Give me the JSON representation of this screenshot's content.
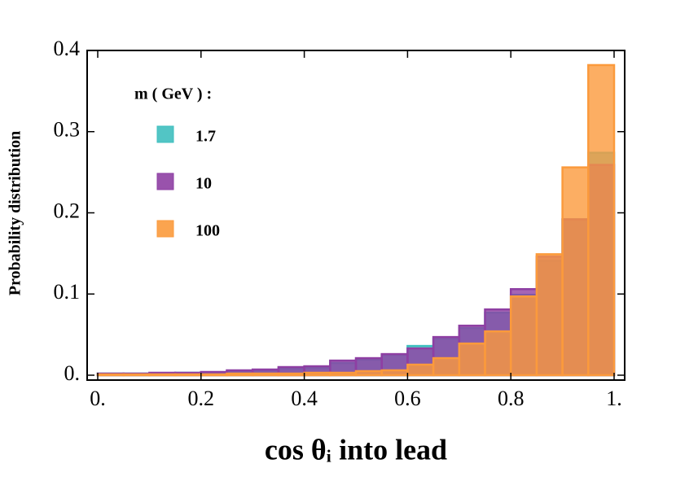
{
  "chart_data": {
    "type": "histogram",
    "x_label": "cos θᵢ  into lead",
    "y_label": "Probability distribution",
    "legend_title": "m ( GeV ) :",
    "legend_position": "upper left",
    "bins": [
      0,
      0.05,
      0.1,
      0.15,
      0.2,
      0.25,
      0.3,
      0.35,
      0.4,
      0.45,
      0.5,
      0.55,
      0.6,
      0.65,
      0.7,
      0.75,
      0.8,
      0.85,
      0.9,
      0.95,
      1
    ],
    "series": [
      {
        "name": "1.7",
        "color": "#3fbfbf",
        "values": [
          0.002,
          0.002,
          0.002,
          0.003,
          0.003,
          0.005,
          0.006,
          0.008,
          0.009,
          0.015,
          0.019,
          0.025,
          0.036,
          0.045,
          0.058,
          0.077,
          0.099,
          0.141,
          0.192,
          0.274
        ]
      },
      {
        "name": "10",
        "color": "#8e3fa3",
        "values": [
          0.002,
          0.002,
          0.003,
          0.003,
          0.004,
          0.006,
          0.007,
          0.01,
          0.011,
          0.018,
          0.021,
          0.026,
          0.033,
          0.047,
          0.061,
          0.081,
          0.106,
          0.146,
          0.192,
          0.259
        ]
      },
      {
        "name": "100",
        "color": "#fb9a3c",
        "values": [
          0.001,
          0.001,
          0.001,
          0.001,
          0.001,
          0.002,
          0.002,
          0.002,
          0.003,
          0.003,
          0.005,
          0.006,
          0.013,
          0.021,
          0.039,
          0.054,
          0.097,
          0.149,
          0.256,
          0.382
        ]
      }
    ],
    "xlim": [
      0,
      1
    ],
    "ylim": [
      0,
      0.4
    ],
    "xticks": [
      {
        "value": 0,
        "label": "0."
      },
      0.2,
      0.4,
      0.6,
      0.8,
      {
        "value": 1,
        "label": "1."
      }
    ],
    "yticks": [
      {
        "value": 0,
        "label": "0."
      },
      0.1,
      0.2,
      0.3,
      0.4
    ]
  }
}
